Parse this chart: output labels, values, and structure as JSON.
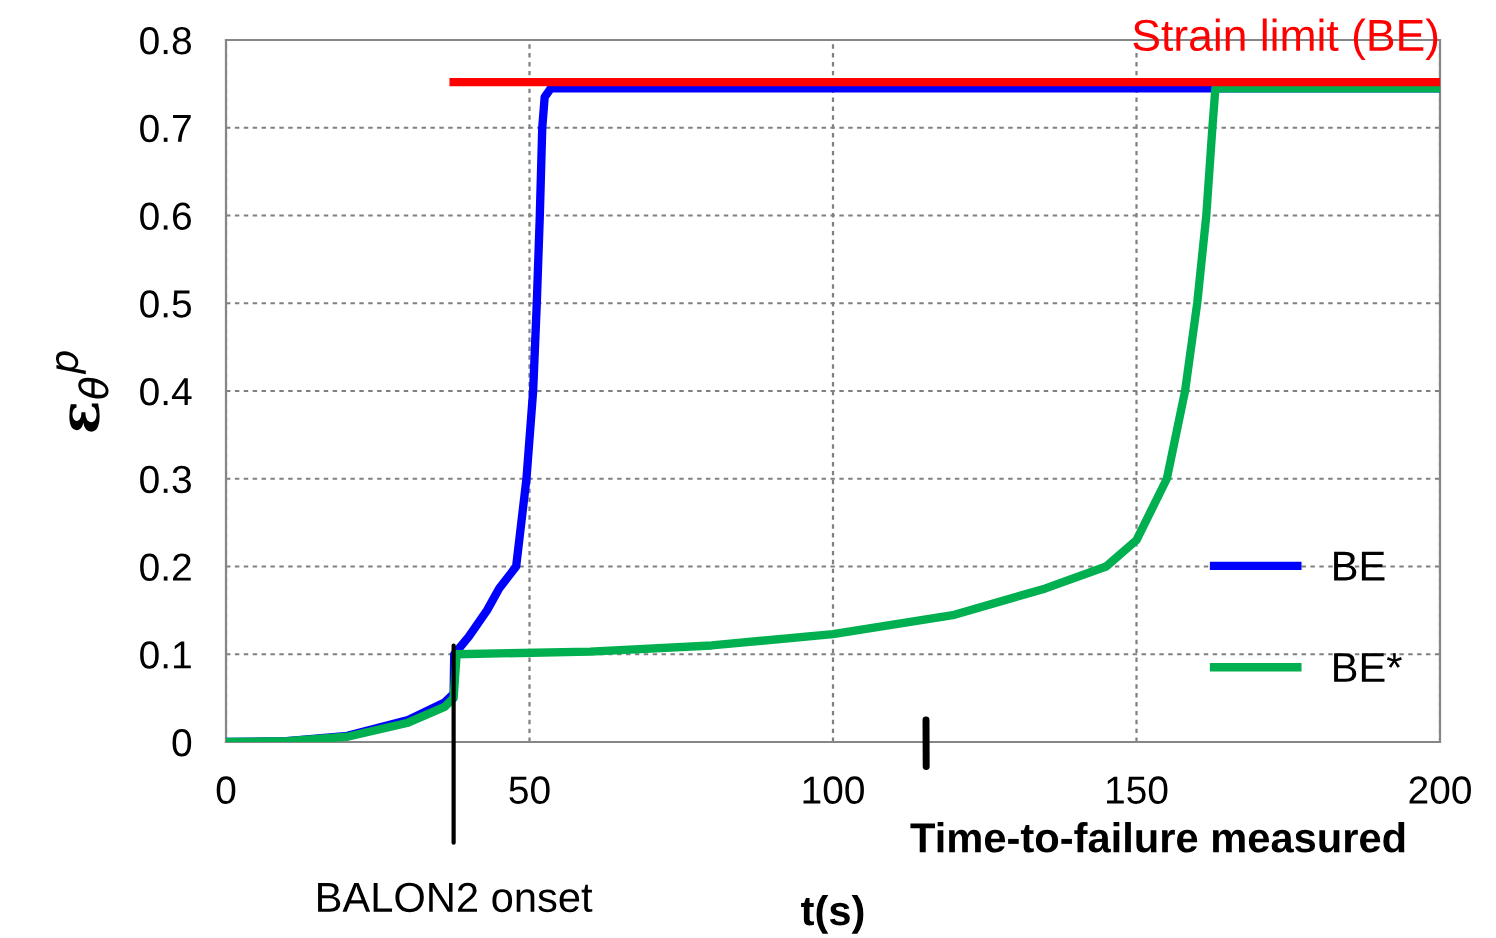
{
  "chart_data": {
    "type": "line",
    "xlabel": "t(s)",
    "ylabel": "ε$_{θ}$$^{p}$",
    "xlim": [
      0,
      200
    ],
    "xticks": [
      0,
      50,
      100,
      150,
      200
    ],
    "ylim": [
      0,
      0.8
    ],
    "yticks": [
      0,
      0.1,
      0.2,
      0.3,
      0.4,
      0.5,
      0.6,
      0.7,
      0.8
    ],
    "grid": true,
    "legend": "bottom right",
    "line_style": "solid",
    "marker": "none",
    "series": [
      {
        "name": "BE",
        "color": "#0000ff",
        "x": [
          0,
          10,
          20,
          30,
          36,
          37.5,
          37.6,
          40,
          43,
          45,
          47.8,
          49.5,
          50.6,
          51.2,
          51.7,
          52.1,
          52.5,
          53.5,
          200
        ],
        "values": [
          0,
          0.001,
          0.007,
          0.025,
          0.045,
          0.055,
          0.1,
          0.12,
          0.15,
          0.175,
          0.2,
          0.3,
          0.4,
          0.5,
          0.6,
          0.7,
          0.735,
          0.745,
          0.745
        ]
      },
      {
        "name": "BE*",
        "color": "#00b050",
        "x": [
          0,
          10,
          20,
          30,
          36,
          37.5,
          38,
          60,
          80,
          100,
          120,
          135,
          145,
          150,
          155,
          158,
          160,
          161.5,
          162.5,
          163,
          200
        ],
        "values": [
          0,
          0.001,
          0.006,
          0.022,
          0.04,
          0.05,
          0.1,
          0.103,
          0.11,
          0.123,
          0.145,
          0.175,
          0.2,
          0.23,
          0.3,
          0.4,
          0.5,
          0.6,
          0.7,
          0.745,
          0.745
        ]
      },
      {
        "color": "#ff0000",
        "x": [
          37.5,
          200
        ],
        "values": [
          0.752,
          0.752
        ]
      }
    ],
    "annotations": [
      {
        "text": "Strain limit (BE)",
        "x": 200,
        "y": 0.752
      },
      {
        "text": "BALON2 onset",
        "x": 37.5,
        "y": 0.11
      },
      "Time-to-failure measured"
    ]
  }
}
